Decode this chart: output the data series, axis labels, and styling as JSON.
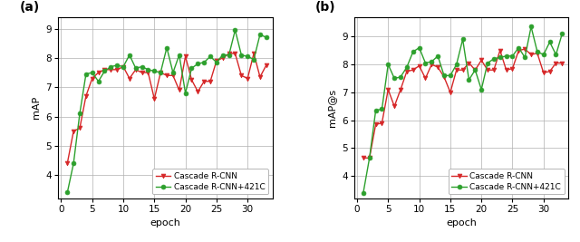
{
  "subplot_a": {
    "label": "(a)",
    "ylabel": "mAP",
    "xlabel": "epoch",
    "xlim": [
      -0.5,
      34
    ],
    "ylim": [
      3.2,
      9.4
    ],
    "yticks": [
      4,
      5,
      6,
      7,
      8,
      9
    ],
    "xticks": [
      0,
      5,
      10,
      15,
      20,
      25,
      30
    ],
    "red_x": [
      1,
      2,
      3,
      4,
      5,
      6,
      7,
      8,
      9,
      10,
      11,
      12,
      13,
      14,
      15,
      16,
      17,
      18,
      19,
      20,
      21,
      22,
      23,
      24,
      25,
      26,
      27,
      28,
      29,
      30,
      31,
      32,
      33
    ],
    "red_y": [
      4.4,
      5.5,
      5.6,
      6.7,
      7.3,
      7.5,
      7.6,
      7.6,
      7.6,
      7.7,
      7.3,
      7.6,
      7.5,
      7.5,
      6.6,
      7.5,
      7.4,
      7.4,
      6.9,
      8.05,
      7.25,
      6.85,
      7.2,
      7.2,
      7.9,
      8.0,
      8.15,
      8.15,
      7.4,
      7.3,
      8.15,
      7.35,
      7.75
    ],
    "green_x": [
      1,
      2,
      3,
      4,
      5,
      6,
      7,
      8,
      9,
      10,
      11,
      12,
      13,
      14,
      15,
      16,
      17,
      18,
      19,
      20,
      21,
      22,
      23,
      24,
      25,
      26,
      27,
      28,
      29,
      30,
      31,
      32,
      33
    ],
    "green_y": [
      3.4,
      4.4,
      6.1,
      7.45,
      7.5,
      7.2,
      7.55,
      7.7,
      7.75,
      7.7,
      8.1,
      7.65,
      7.7,
      7.6,
      7.55,
      7.5,
      8.35,
      7.5,
      8.1,
      6.8,
      7.65,
      7.8,
      7.85,
      8.05,
      7.85,
      8.1,
      8.1,
      8.95,
      8.1,
      8.05,
      7.95,
      8.8,
      8.7
    ]
  },
  "subplot_b": {
    "label": "(b)",
    "ylabel": "mAP@s",
    "xlabel": "epoch",
    "xlim": [
      -0.5,
      34
    ],
    "ylim": [
      3.2,
      9.7
    ],
    "yticks": [
      4,
      5,
      6,
      7,
      8,
      9
    ],
    "xticks": [
      0,
      5,
      10,
      15,
      20,
      25,
      30
    ],
    "red_x": [
      1,
      2,
      3,
      4,
      5,
      6,
      7,
      8,
      9,
      10,
      11,
      12,
      13,
      14,
      15,
      16,
      17,
      18,
      19,
      20,
      21,
      22,
      23,
      24,
      25,
      26,
      27,
      28,
      29,
      30,
      31,
      32,
      33
    ],
    "red_y": [
      4.65,
      4.65,
      5.85,
      5.9,
      7.1,
      6.5,
      7.1,
      7.75,
      7.8,
      7.95,
      7.5,
      8.0,
      7.9,
      7.55,
      7.0,
      7.8,
      7.8,
      8.05,
      7.8,
      8.15,
      7.8,
      7.8,
      8.5,
      7.8,
      7.85,
      8.5,
      8.55,
      8.35,
      8.4,
      7.7,
      7.75,
      8.05,
      8.05
    ],
    "green_x": [
      1,
      2,
      3,
      4,
      5,
      6,
      7,
      8,
      9,
      10,
      11,
      12,
      13,
      14,
      15,
      16,
      17,
      18,
      19,
      20,
      21,
      22,
      23,
      24,
      25,
      26,
      27,
      28,
      29,
      30,
      31,
      32,
      33
    ],
    "green_y": [
      3.4,
      4.65,
      6.35,
      6.4,
      8.0,
      7.5,
      7.55,
      7.9,
      8.45,
      8.6,
      8.05,
      8.1,
      8.3,
      7.6,
      7.6,
      8.0,
      8.9,
      7.45,
      7.8,
      7.1,
      8.05,
      8.2,
      8.25,
      8.3,
      8.3,
      8.6,
      8.25,
      9.35,
      8.45,
      8.35,
      8.8,
      8.35,
      9.1
    ]
  },
  "red_color": "#d62728",
  "green_color": "#2ca02c",
  "legend_red": "Cascade R-CNN",
  "legend_green": "Cascade R-CNN+421C",
  "grid_color": "#b0b0b0",
  "background_color": "#ffffff",
  "fig_width": 6.4,
  "fig_height": 2.67,
  "dpi": 100
}
